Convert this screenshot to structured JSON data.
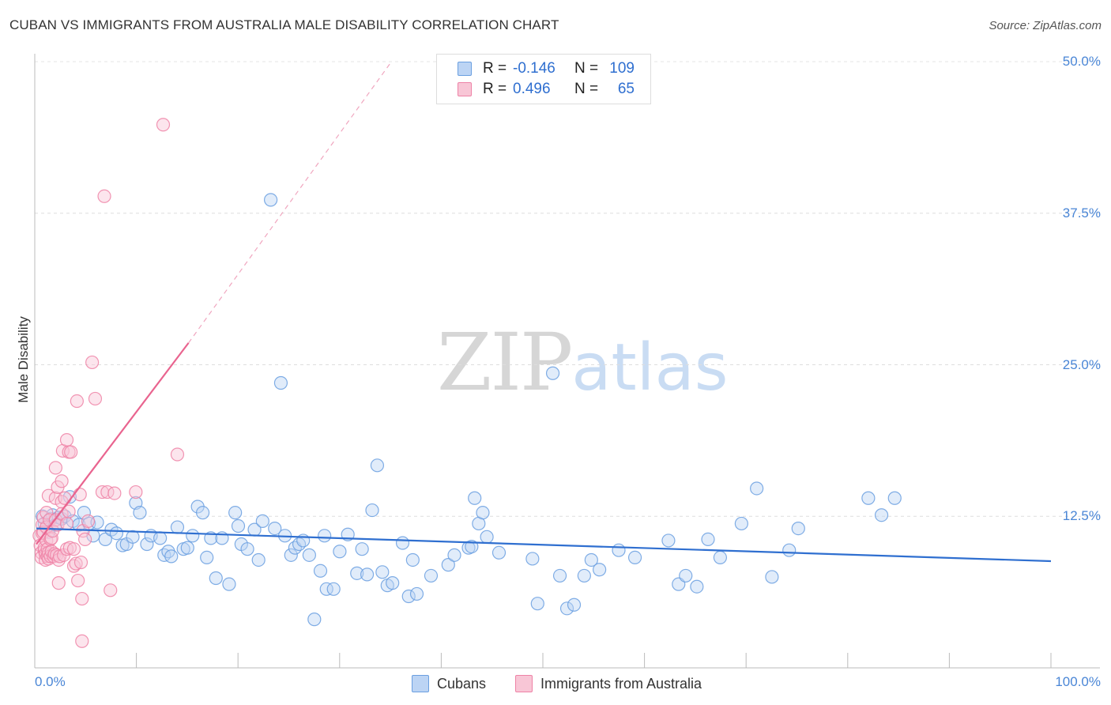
{
  "header": {
    "title": "CUBAN VS IMMIGRANTS FROM AUSTRALIA MALE DISABILITY CORRELATION CHART",
    "source": "Source: ZipAtlas.com"
  },
  "watermark": {
    "zip": "ZIP",
    "atlas": "atlas"
  },
  "colors": {
    "cubans": "#6a9fe0",
    "cubans_fill": "#bcd4f4",
    "australia": "#ee82a6",
    "australia_fill": "#f8c6d6",
    "cubans_line": "#2f6fd0",
    "australia_line": "#e9648f",
    "tick_text": "#4a86d6"
  },
  "stats": {
    "rows": [
      {
        "r_label": "R =",
        "r_value": "-0.146",
        "n_label": "N =",
        "n_value": "109"
      },
      {
        "r_label": "R =",
        "r_value": "0.496",
        "n_label": "N =",
        "n_value": "65"
      }
    ]
  },
  "legend": {
    "items": [
      "Cubans",
      "Immigrants from Australia"
    ]
  },
  "chart_data": {
    "type": "scatter",
    "title": "CUBAN VS IMMIGRANTS FROM AUSTRALIA MALE DISABILITY CORRELATION CHART",
    "xlabel": "",
    "ylabel": "Male Disability",
    "xlim": [
      0,
      100
    ],
    "ylim": [
      0,
      52
    ],
    "x_ticks": [
      "0.0%",
      "100.0%"
    ],
    "y_ticks": [
      {
        "value": 12.5,
        "label": "12.5%"
      },
      {
        "value": 25.0,
        "label": "25.0%"
      },
      {
        "value": 37.5,
        "label": "37.5%"
      },
      {
        "value": 50.0,
        "label": "50.0%"
      }
    ],
    "grid": "horizontal dashed",
    "legend_position": "bottom-center",
    "series": [
      {
        "name": "Cubans",
        "trend": {
          "x": [
            0,
            100
          ],
          "y": [
            11.5,
            8.8
          ]
        },
        "points": [
          [
            0.6,
            12.5
          ],
          [
            0.8,
            11.9
          ],
          [
            1.2,
            11.2
          ],
          [
            1.4,
            12.3
          ],
          [
            1.6,
            12.6
          ],
          [
            1.9,
            11.8
          ],
          [
            2.2,
            12.4
          ],
          [
            2.5,
            12.3
          ],
          [
            2.8,
            12.5
          ],
          [
            3.3,
            14.1
          ],
          [
            3.6,
            12.1
          ],
          [
            4.2,
            11.8
          ],
          [
            4.7,
            12.8
          ],
          [
            5.2,
            11.9
          ],
          [
            5.6,
            10.9
          ],
          [
            6.0,
            12.0
          ],
          [
            6.8,
            10.6
          ],
          [
            7.4,
            11.4
          ],
          [
            7.9,
            11.1
          ],
          [
            8.5,
            10.1
          ],
          [
            8.9,
            10.2
          ],
          [
            9.5,
            10.8
          ],
          [
            9.8,
            13.6
          ],
          [
            10.2,
            12.8
          ],
          [
            10.9,
            10.2
          ],
          [
            11.3,
            10.9
          ],
          [
            12.2,
            10.7
          ],
          [
            12.6,
            9.3
          ],
          [
            13.0,
            9.6
          ],
          [
            13.3,
            9.2
          ],
          [
            13.9,
            11.6
          ],
          [
            14.5,
            9.8
          ],
          [
            14.9,
            9.9
          ],
          [
            15.4,
            10.9
          ],
          [
            15.9,
            13.3
          ],
          [
            16.4,
            12.8
          ],
          [
            16.8,
            9.1
          ],
          [
            17.2,
            10.7
          ],
          [
            17.7,
            7.4
          ],
          [
            18.3,
            10.7
          ],
          [
            19.0,
            6.9
          ],
          [
            19.6,
            12.8
          ],
          [
            19.9,
            11.7
          ],
          [
            20.2,
            10.2
          ],
          [
            20.8,
            9.8
          ],
          [
            21.5,
            11.4
          ],
          [
            21.9,
            8.9
          ],
          [
            22.3,
            12.1
          ],
          [
            23.1,
            38.6
          ],
          [
            23.5,
            11.5
          ],
          [
            24.1,
            23.5
          ],
          [
            24.5,
            10.9
          ],
          [
            25.1,
            9.3
          ],
          [
            25.5,
            9.9
          ],
          [
            25.9,
            10.2
          ],
          [
            26.3,
            10.5
          ],
          [
            26.9,
            9.3
          ],
          [
            27.4,
            4.0
          ],
          [
            28.0,
            8.0
          ],
          [
            28.4,
            10.9
          ],
          [
            28.6,
            6.5
          ],
          [
            29.3,
            6.5
          ],
          [
            29.9,
            9.6
          ],
          [
            30.7,
            11.0
          ],
          [
            31.6,
            7.8
          ],
          [
            32.1,
            9.8
          ],
          [
            32.6,
            7.7
          ],
          [
            33.1,
            13.0
          ],
          [
            33.6,
            16.7
          ],
          [
            34.1,
            7.9
          ],
          [
            34.6,
            6.8
          ],
          [
            35.1,
            7.0
          ],
          [
            36.1,
            10.3
          ],
          [
            36.7,
            5.9
          ],
          [
            37.1,
            8.9
          ],
          [
            37.5,
            6.1
          ],
          [
            38.9,
            7.6
          ],
          [
            40.6,
            8.5
          ],
          [
            41.2,
            9.3
          ],
          [
            42.6,
            9.9
          ],
          [
            42.9,
            10.0
          ],
          [
            43.2,
            14.0
          ],
          [
            43.6,
            11.9
          ],
          [
            44.0,
            12.8
          ],
          [
            44.4,
            10.8
          ],
          [
            45.6,
            9.5
          ],
          [
            48.9,
            9.0
          ],
          [
            49.4,
            5.3
          ],
          [
            50.9,
            24.3
          ],
          [
            51.6,
            7.6
          ],
          [
            52.3,
            4.9
          ],
          [
            53.0,
            5.2
          ],
          [
            54.0,
            7.6
          ],
          [
            54.7,
            8.9
          ],
          [
            55.5,
            8.1
          ],
          [
            57.4,
            9.7
          ],
          [
            59.0,
            9.1
          ],
          [
            62.3,
            10.5
          ],
          [
            63.3,
            6.9
          ],
          [
            64.0,
            7.6
          ],
          [
            65.1,
            6.7
          ],
          [
            66.2,
            10.6
          ],
          [
            67.4,
            9.1
          ],
          [
            69.5,
            11.9
          ],
          [
            71.0,
            14.8
          ],
          [
            72.5,
            7.5
          ],
          [
            74.2,
            9.7
          ],
          [
            75.1,
            11.5
          ],
          [
            82.0,
            14.0
          ],
          [
            83.3,
            12.6
          ],
          [
            84.6,
            14.0
          ]
        ]
      },
      {
        "name": "Immigrants from Australia",
        "trend": {
          "x": [
            0,
            15
          ],
          "y": [
            10.2,
            26.8
          ],
          "dashed_to": {
            "x": 35,
            "y": 50
          }
        },
        "points": [
          [
            0.3,
            10.9
          ],
          [
            0.4,
            10.1
          ],
          [
            0.5,
            9.5
          ],
          [
            0.5,
            9.1
          ],
          [
            0.6,
            11.8
          ],
          [
            0.6,
            11.1
          ],
          [
            0.7,
            12.4
          ],
          [
            0.7,
            11.2
          ],
          [
            0.8,
            9.7
          ],
          [
            0.8,
            9.9
          ],
          [
            0.9,
            9.4
          ],
          [
            0.9,
            8.9
          ],
          [
            1.0,
            12.8
          ],
          [
            1.0,
            11.6
          ],
          [
            1.0,
            10.5
          ],
          [
            1.1,
            9.8
          ],
          [
            1.1,
            9.2
          ],
          [
            1.2,
            9.0
          ],
          [
            1.2,
            9.5
          ],
          [
            1.2,
            14.2
          ],
          [
            1.3,
            12.2
          ],
          [
            1.4,
            9.2
          ],
          [
            1.4,
            10.6
          ],
          [
            1.5,
            10.7
          ],
          [
            1.5,
            9.6
          ],
          [
            1.6,
            11.3
          ],
          [
            1.7,
            9.2
          ],
          [
            1.8,
            9.4
          ],
          [
            1.9,
            12.2
          ],
          [
            1.9,
            16.5
          ],
          [
            1.9,
            14.0
          ],
          [
            2.0,
            9.3
          ],
          [
            2.1,
            11.8
          ],
          [
            2.1,
            14.9
          ],
          [
            2.2,
            8.9
          ],
          [
            2.2,
            7.0
          ],
          [
            2.3,
            9.2
          ],
          [
            2.5,
            13.7
          ],
          [
            2.5,
            12.7
          ],
          [
            2.5,
            15.4
          ],
          [
            2.6,
            17.9
          ],
          [
            2.7,
            9.3
          ],
          [
            2.8,
            14.0
          ],
          [
            3.0,
            9.8
          ],
          [
            3.0,
            11.9
          ],
          [
            3.0,
            18.8
          ],
          [
            3.2,
            17.8
          ],
          [
            3.2,
            12.9
          ],
          [
            3.3,
            9.9
          ],
          [
            3.4,
            17.8
          ],
          [
            3.7,
            8.4
          ],
          [
            3.7,
            9.8
          ],
          [
            3.9,
            8.6
          ],
          [
            4.0,
            22.0
          ],
          [
            4.1,
            7.2
          ],
          [
            4.3,
            14.3
          ],
          [
            4.4,
            8.7
          ],
          [
            4.5,
            5.7
          ],
          [
            4.5,
            2.2
          ],
          [
            4.6,
            11.3
          ],
          [
            4.8,
            10.6
          ],
          [
            5.1,
            12.1
          ],
          [
            5.5,
            25.2
          ],
          [
            5.8,
            22.2
          ],
          [
            6.5,
            14.5
          ],
          [
            6.7,
            38.9
          ],
          [
            7.0,
            14.5
          ],
          [
            7.3,
            6.4
          ],
          [
            7.7,
            14.4
          ],
          [
            9.8,
            14.5
          ],
          [
            12.5,
            44.8
          ],
          [
            13.9,
            17.6
          ]
        ]
      }
    ]
  }
}
